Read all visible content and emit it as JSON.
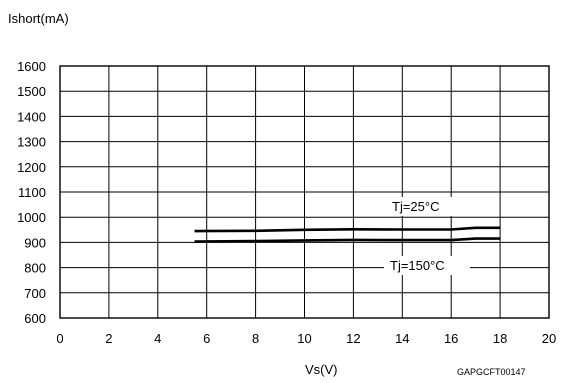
{
  "chart_data": {
    "type": "line",
    "ylabel": "Ishort(mA)",
    "xlabel": "Vs(V)",
    "xlim": [
      0,
      20
    ],
    "ylim": [
      600,
      1600
    ],
    "x_ticks": [
      0,
      2,
      4,
      6,
      8,
      10,
      12,
      14,
      16,
      18,
      20
    ],
    "y_ticks": [
      600,
      700,
      800,
      900,
      1000,
      1100,
      1200,
      1300,
      1400,
      1500,
      1600
    ],
    "grid": true,
    "figure_code": "GAPGCFT00147",
    "series": [
      {
        "name": "Tj=25°C",
        "color": "#000000",
        "points": [
          [
            5.5,
            945
          ],
          [
            8,
            946
          ],
          [
            10,
            950
          ],
          [
            12,
            952
          ],
          [
            14,
            951
          ],
          [
            16,
            951
          ],
          [
            17,
            958
          ],
          [
            18,
            958
          ]
        ]
      },
      {
        "name": "Tj=150°C",
        "color": "#000000",
        "points": [
          [
            5.5,
            903
          ],
          [
            8,
            905
          ],
          [
            10,
            908
          ],
          [
            12,
            910
          ],
          [
            14,
            909
          ],
          [
            16,
            909
          ],
          [
            17,
            915
          ],
          [
            18,
            915
          ]
        ]
      }
    ]
  }
}
